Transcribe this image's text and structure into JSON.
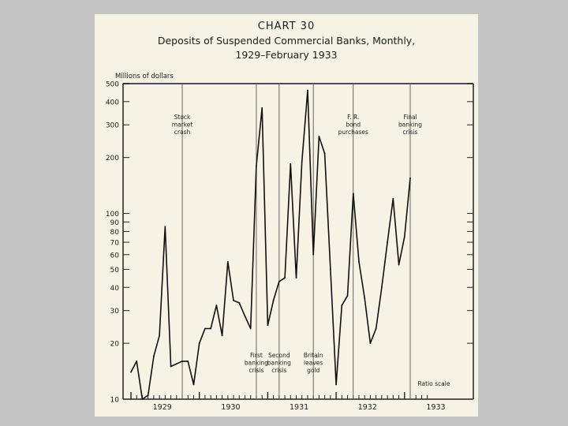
{
  "chart_data": {
    "type": "line",
    "title": "CHART 30",
    "subtitle_lines": [
      "Deposits of Suspended Commercial Banks, Monthly,",
      "1929–February 1933"
    ],
    "ylabel": "Millions of dollars",
    "scale_note": "Ratio scale",
    "scale": "log",
    "ylim": [
      10,
      500
    ],
    "xlim": [
      "1929-01",
      "1933-02"
    ],
    "y_ticks": [
      10,
      20,
      30,
      40,
      50,
      60,
      70,
      80,
      90,
      100,
      200,
      300,
      400,
      500
    ],
    "y_tick_labels": [
      "10",
      "20",
      "30",
      "40",
      "50",
      "60",
      "70",
      "80",
      "90",
      "100",
      "200",
      "300",
      "400",
      "500"
    ],
    "x_tick_labels": [
      {
        "label": "1929",
        "year": 1929
      },
      {
        "label": "1930",
        "year": 1930
      },
      {
        "label": "1931",
        "year": 1931
      },
      {
        "label": "1932",
        "year": 1932
      },
      {
        "label": "1933",
        "year": 1933
      }
    ],
    "x": [
      "1929-01",
      "1929-02",
      "1929-03",
      "1929-04",
      "1929-05",
      "1929-06",
      "1929-07",
      "1929-08",
      "1929-09",
      "1929-10",
      "1929-11",
      "1929-12",
      "1930-01",
      "1930-02",
      "1930-03",
      "1930-04",
      "1930-05",
      "1930-06",
      "1930-07",
      "1930-08",
      "1930-09",
      "1930-10",
      "1930-11",
      "1930-12",
      "1931-01",
      "1931-02",
      "1931-03",
      "1931-04",
      "1931-05",
      "1931-06",
      "1931-07",
      "1931-08",
      "1931-09",
      "1931-10",
      "1931-11",
      "1931-12",
      "1932-01",
      "1932-02",
      "1932-03",
      "1932-04",
      "1932-05",
      "1932-06",
      "1932-07",
      "1932-08",
      "1932-09",
      "1932-10",
      "1932-11",
      "1932-12",
      "1933-01",
      "1933-02"
    ],
    "series": [
      {
        "values": [
          14,
          16,
          10,
          10.5,
          17,
          22,
          85,
          15,
          15.5,
          16,
          16,
          12,
          20,
          24,
          24,
          32,
          22,
          55,
          34,
          33,
          28,
          24,
          180,
          370,
          25,
          34,
          43,
          45,
          185,
          45,
          190,
          460,
          60,
          260,
          210,
          50,
          12,
          32,
          36,
          128,
          55,
          35,
          20,
          24,
          40,
          70,
          120,
          53,
          75,
          155
        ]
      }
    ],
    "annotations": [
      {
        "lines": [
          "Stock",
          "market",
          "crash"
        ],
        "date": "1929-10",
        "placement": "top"
      },
      {
        "lines": [
          "First",
          "banking",
          "crisis"
        ],
        "date": "1930-11",
        "placement": "bottom"
      },
      {
        "lines": [
          "Second",
          "banking",
          "crisis"
        ],
        "date": "1931-03",
        "placement": "bottom"
      },
      {
        "lines": [
          "Britain",
          "leaves",
          "gold"
        ],
        "date": "1931-09",
        "placement": "bottom"
      },
      {
        "lines": [
          "F. R.",
          "bond",
          "purchases"
        ],
        "date": "1932-04",
        "placement": "top"
      },
      {
        "lines": [
          "Final",
          "banking",
          "crisis"
        ],
        "date": "1933-02",
        "placement": "top"
      }
    ],
    "grid": false
  }
}
